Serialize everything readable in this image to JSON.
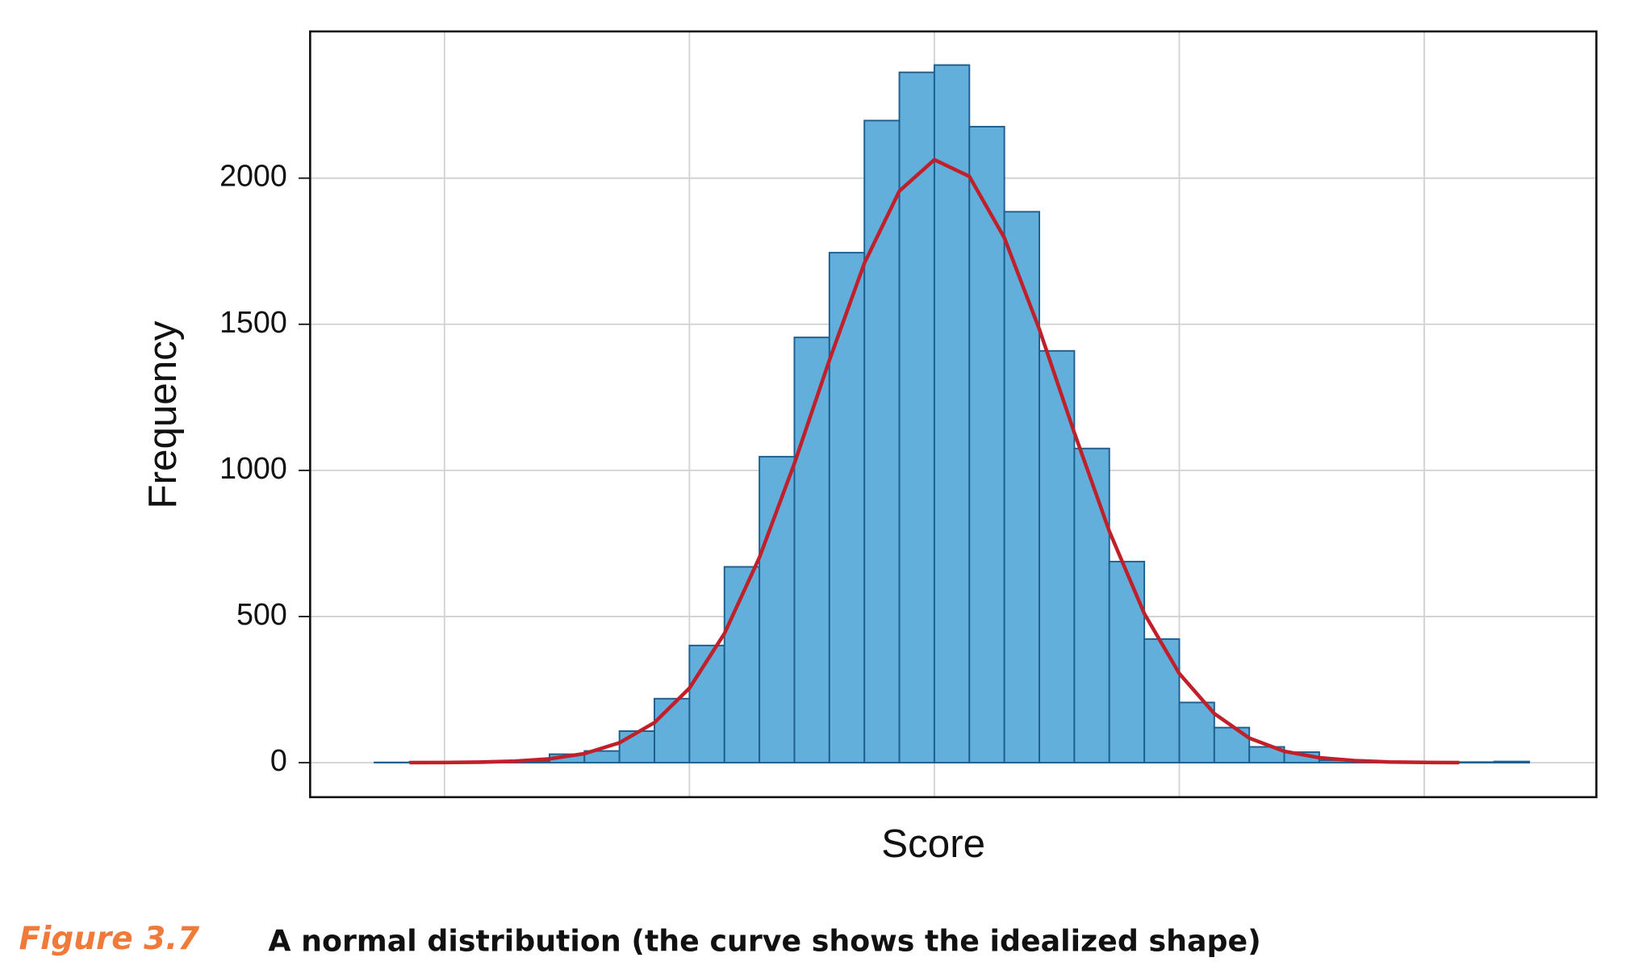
{
  "chart_data": {
    "type": "histogram",
    "xlabel": "Score",
    "ylabel": "Frequency",
    "figure_label": "Figure 3.7",
    "caption": "A normal distribution (the curve shows the idealized shape)",
    "bins": [
      0,
      1,
      2,
      3,
      4,
      5,
      6,
      7,
      8,
      9,
      10,
      11,
      12,
      13,
      14,
      15,
      16,
      17,
      18,
      19,
      20,
      21,
      22,
      23,
      24,
      25,
      26,
      27,
      28,
      29,
      30,
      31,
      32,
      33
    ],
    "values": [
      1,
      3,
      2,
      3,
      5,
      29,
      40,
      108,
      219,
      401,
      670,
      1047,
      1455,
      1745,
      2197,
      2362,
      2387,
      2176,
      1885,
      1409,
      1075,
      688,
      423,
      206,
      120,
      54,
      36,
      8,
      4,
      3,
      2,
      2,
      4
    ],
    "color": "#62afdc",
    "edgecolor": "#1f5f8f",
    "curve": {
      "x": [
        1,
        2,
        3,
        4,
        5,
        6,
        7,
        8,
        9,
        10,
        11,
        12,
        13,
        14,
        15,
        16,
        17,
        18,
        19,
        20,
        21,
        22,
        23,
        24,
        25,
        26,
        27,
        28,
        29,
        30,
        31
      ],
      "values": [
        0.2,
        0.6,
        1.8,
        5,
        13,
        31,
        68,
        137,
        255,
        442,
        702,
        1024,
        1377,
        1709,
        1956,
        2063,
        2006,
        1796,
        1483,
        1129,
        792,
        510,
        305,
        168,
        84,
        39,
        17,
        7,
        2.4,
        0.8,
        0.3
      ],
      "color": "#c0202a"
    },
    "xlim": [
      -1.84,
      34.92
    ],
    "ylim": [
      -118,
      2502
    ],
    "xticks": [
      2,
      9,
      16,
      23,
      30
    ],
    "yticks": [
      0,
      500,
      1000,
      1500,
      2000
    ],
    "grid": true
  }
}
